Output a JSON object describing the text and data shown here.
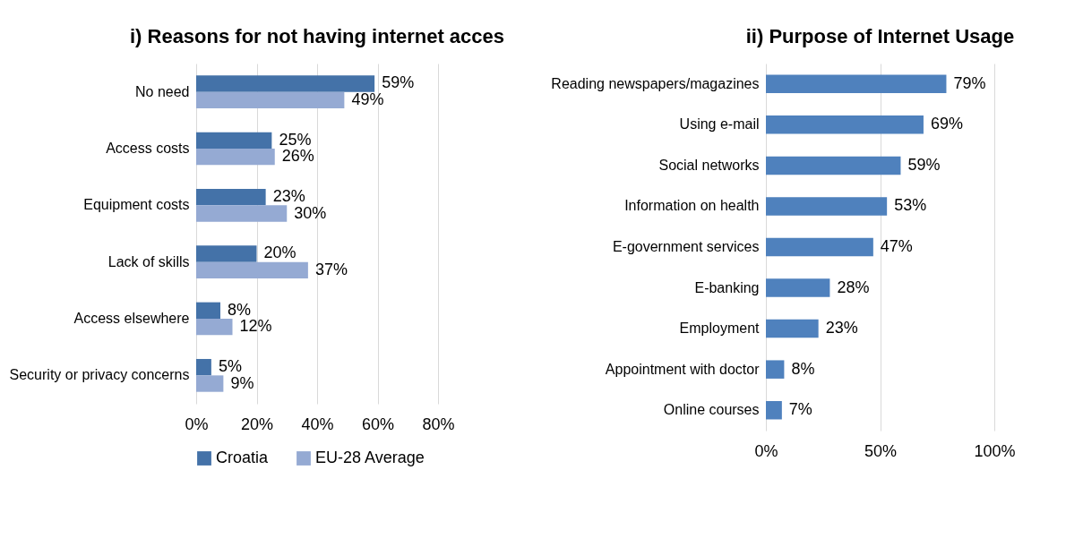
{
  "chart_data": [
    {
      "type": "bar",
      "orientation": "horizontal",
      "title": "i) Reasons for not having internet acces",
      "categories": [
        "No need",
        "Access costs",
        "Equipment costs",
        "Lack of skills",
        "Access elsewhere",
        "Security or privacy concerns"
      ],
      "series": [
        {
          "name": "Croatia",
          "color": "#4472a8",
          "values": [
            59,
            25,
            23,
            20,
            8,
            5
          ],
          "value_labels": [
            "59%",
            "25%",
            "23%",
            "20%",
            "8%",
            "5%"
          ]
        },
        {
          "name": "EU-28 Average",
          "color": "#95aad3",
          "values": [
            49,
            26,
            30,
            37,
            12,
            9
          ],
          "value_labels": [
            "49%",
            "26%",
            "30%",
            "37%",
            "12%",
            "9%"
          ]
        }
      ],
      "xlim": [
        0,
        80
      ],
      "xticks": [
        {
          "value": 0,
          "label": "0%"
        },
        {
          "value": 20,
          "label": "20%"
        },
        {
          "value": 40,
          "label": "40%"
        },
        {
          "value": 60,
          "label": "60%"
        },
        {
          "value": 80,
          "label": "80%"
        }
      ],
      "grid": "x",
      "legend": "bottom"
    },
    {
      "type": "bar",
      "orientation": "horizontal",
      "title": "ii) Purpose of Internet Usage",
      "categories": [
        "Reading newspapers/magazines",
        "Using e-mail",
        "Social networks",
        "Information on health",
        "E-government services",
        "E-banking",
        "Employment",
        "Appointment with doctor",
        "Online courses"
      ],
      "values": [
        79,
        69,
        59,
        53,
        47,
        28,
        23,
        8,
        7
      ],
      "color": "#4f81bd",
      "value_labels": [
        "79%",
        "69%",
        "59%",
        "53%",
        "47%",
        "28%",
        "23%",
        "8%",
        "7%"
      ],
      "xlim": [
        0,
        100
      ],
      "xticks": [
        {
          "value": 0,
          "label": "0%"
        },
        {
          "value": 50,
          "label": "50%"
        },
        {
          "value": 100,
          "label": "100%"
        }
      ],
      "grid": "x",
      "legend": false
    }
  ]
}
